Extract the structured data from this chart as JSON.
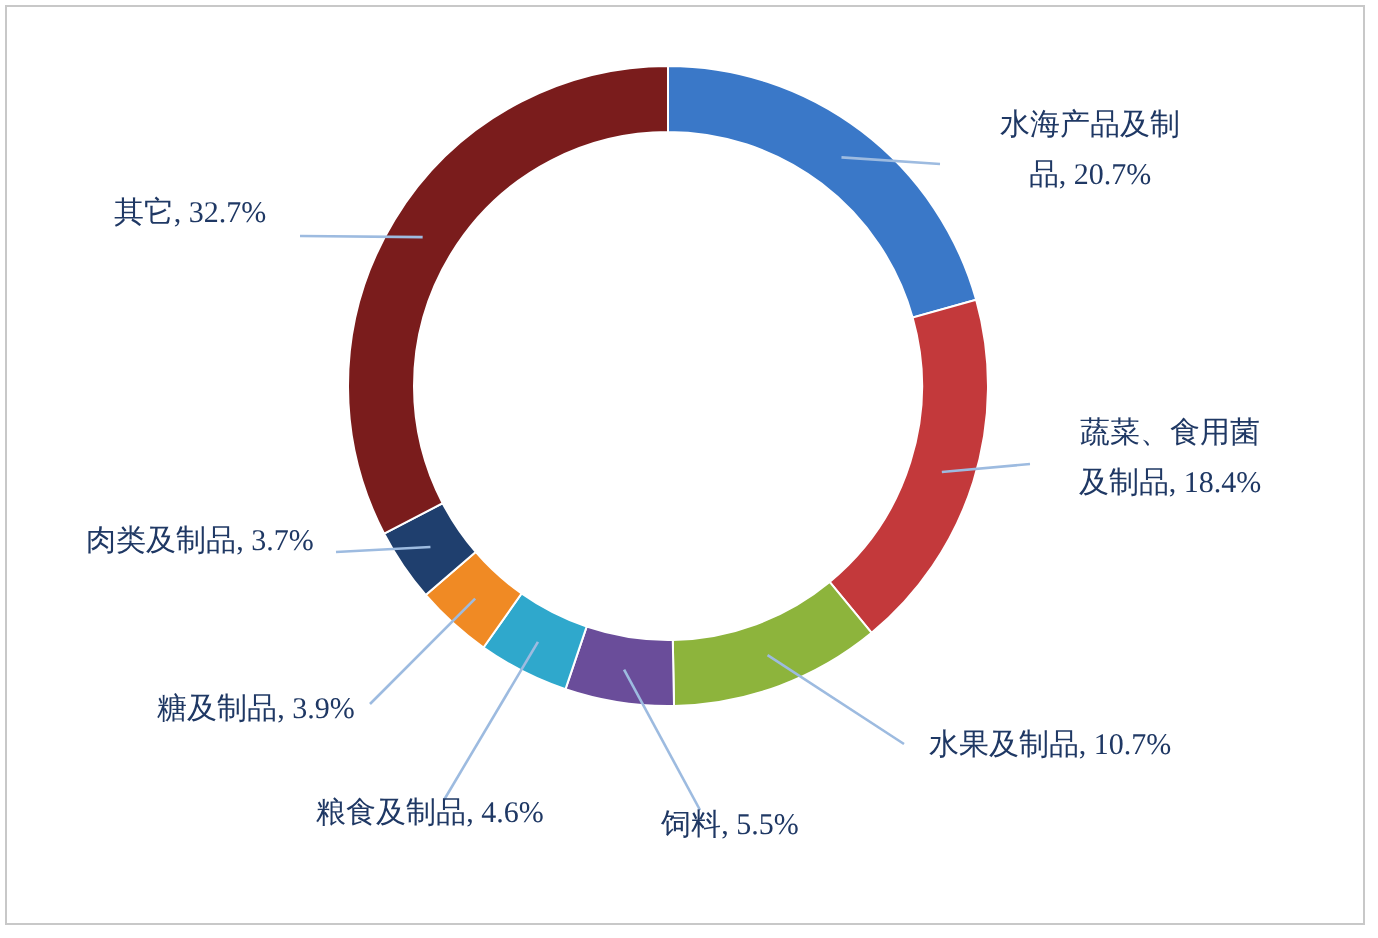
{
  "chart_data": {
    "type": "donut",
    "categories": [
      "水海产品及制品",
      "蔬菜、食用菌及制品",
      "水果及制品",
      "饲料",
      "粮食及制品",
      "糖及制品",
      "肉类及制品",
      "其它"
    ],
    "values": [
      20.7,
      18.4,
      10.7,
      5.5,
      4.6,
      3.9,
      3.7,
      32.7
    ],
    "value_labels": [
      "20.7%",
      "18.4%",
      "10.7%",
      "5.5%",
      "4.6%",
      "3.9%",
      "3.7%",
      "32.7%"
    ],
    "colors": [
      "#3a78c8",
      "#c3393b",
      "#8db43c",
      "#6a4d9a",
      "#2fa8cc",
      "#f08a24",
      "#1f3f6e",
      "#7a1c1c"
    ],
    "legend": false
  }
}
